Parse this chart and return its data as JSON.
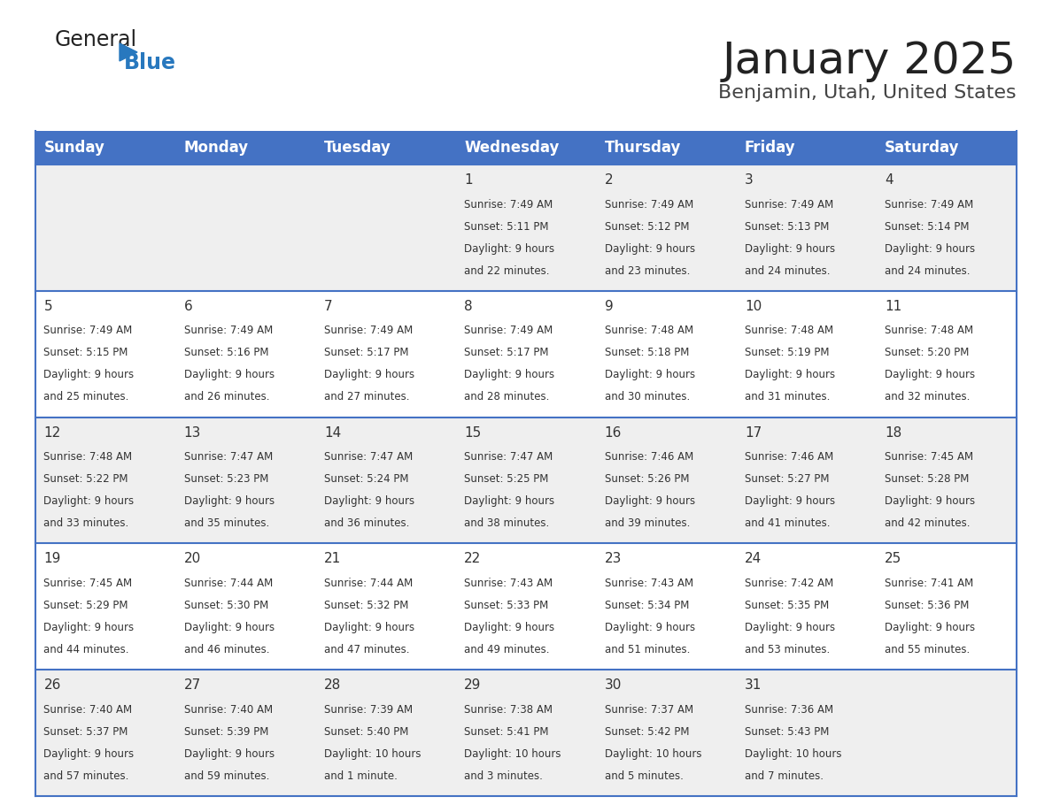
{
  "title": "January 2025",
  "subtitle": "Benjamin, Utah, United States",
  "header_color": "#4472C4",
  "header_text_color": "#FFFFFF",
  "weekdays": [
    "Sunday",
    "Monday",
    "Tuesday",
    "Wednesday",
    "Thursday",
    "Friday",
    "Saturday"
  ],
  "days": [
    {
      "day": 1,
      "col": 3,
      "row": 0,
      "sunrise": "7:49 AM",
      "sunset": "5:11 PM",
      "daylight_hours": 9,
      "daylight_minutes": 22
    },
    {
      "day": 2,
      "col": 4,
      "row": 0,
      "sunrise": "7:49 AM",
      "sunset": "5:12 PM",
      "daylight_hours": 9,
      "daylight_minutes": 23
    },
    {
      "day": 3,
      "col": 5,
      "row": 0,
      "sunrise": "7:49 AM",
      "sunset": "5:13 PM",
      "daylight_hours": 9,
      "daylight_minutes": 24
    },
    {
      "day": 4,
      "col": 6,
      "row": 0,
      "sunrise": "7:49 AM",
      "sunset": "5:14 PM",
      "daylight_hours": 9,
      "daylight_minutes": 24
    },
    {
      "day": 5,
      "col": 0,
      "row": 1,
      "sunrise": "7:49 AM",
      "sunset": "5:15 PM",
      "daylight_hours": 9,
      "daylight_minutes": 25
    },
    {
      "day": 6,
      "col": 1,
      "row": 1,
      "sunrise": "7:49 AM",
      "sunset": "5:16 PM",
      "daylight_hours": 9,
      "daylight_minutes": 26
    },
    {
      "day": 7,
      "col": 2,
      "row": 1,
      "sunrise": "7:49 AM",
      "sunset": "5:17 PM",
      "daylight_hours": 9,
      "daylight_minutes": 27
    },
    {
      "day": 8,
      "col": 3,
      "row": 1,
      "sunrise": "7:49 AM",
      "sunset": "5:17 PM",
      "daylight_hours": 9,
      "daylight_minutes": 28
    },
    {
      "day": 9,
      "col": 4,
      "row": 1,
      "sunrise": "7:48 AM",
      "sunset": "5:18 PM",
      "daylight_hours": 9,
      "daylight_minutes": 30
    },
    {
      "day": 10,
      "col": 5,
      "row": 1,
      "sunrise": "7:48 AM",
      "sunset": "5:19 PM",
      "daylight_hours": 9,
      "daylight_minutes": 31
    },
    {
      "day": 11,
      "col": 6,
      "row": 1,
      "sunrise": "7:48 AM",
      "sunset": "5:20 PM",
      "daylight_hours": 9,
      "daylight_minutes": 32
    },
    {
      "day": 12,
      "col": 0,
      "row": 2,
      "sunrise": "7:48 AM",
      "sunset": "5:22 PM",
      "daylight_hours": 9,
      "daylight_minutes": 33
    },
    {
      "day": 13,
      "col": 1,
      "row": 2,
      "sunrise": "7:47 AM",
      "sunset": "5:23 PM",
      "daylight_hours": 9,
      "daylight_minutes": 35
    },
    {
      "day": 14,
      "col": 2,
      "row": 2,
      "sunrise": "7:47 AM",
      "sunset": "5:24 PM",
      "daylight_hours": 9,
      "daylight_minutes": 36
    },
    {
      "day": 15,
      "col": 3,
      "row": 2,
      "sunrise": "7:47 AM",
      "sunset": "5:25 PM",
      "daylight_hours": 9,
      "daylight_minutes": 38
    },
    {
      "day": 16,
      "col": 4,
      "row": 2,
      "sunrise": "7:46 AM",
      "sunset": "5:26 PM",
      "daylight_hours": 9,
      "daylight_minutes": 39
    },
    {
      "day": 17,
      "col": 5,
      "row": 2,
      "sunrise": "7:46 AM",
      "sunset": "5:27 PM",
      "daylight_hours": 9,
      "daylight_minutes": 41
    },
    {
      "day": 18,
      "col": 6,
      "row": 2,
      "sunrise": "7:45 AM",
      "sunset": "5:28 PM",
      "daylight_hours": 9,
      "daylight_minutes": 42
    },
    {
      "day": 19,
      "col": 0,
      "row": 3,
      "sunrise": "7:45 AM",
      "sunset": "5:29 PM",
      "daylight_hours": 9,
      "daylight_minutes": 44
    },
    {
      "day": 20,
      "col": 1,
      "row": 3,
      "sunrise": "7:44 AM",
      "sunset": "5:30 PM",
      "daylight_hours": 9,
      "daylight_minutes": 46
    },
    {
      "day": 21,
      "col": 2,
      "row": 3,
      "sunrise": "7:44 AM",
      "sunset": "5:32 PM",
      "daylight_hours": 9,
      "daylight_minutes": 47
    },
    {
      "day": 22,
      "col": 3,
      "row": 3,
      "sunrise": "7:43 AM",
      "sunset": "5:33 PM",
      "daylight_hours": 9,
      "daylight_minutes": 49
    },
    {
      "day": 23,
      "col": 4,
      "row": 3,
      "sunrise": "7:43 AM",
      "sunset": "5:34 PM",
      "daylight_hours": 9,
      "daylight_minutes": 51
    },
    {
      "day": 24,
      "col": 5,
      "row": 3,
      "sunrise": "7:42 AM",
      "sunset": "5:35 PM",
      "daylight_hours": 9,
      "daylight_minutes": 53
    },
    {
      "day": 25,
      "col": 6,
      "row": 3,
      "sunrise": "7:41 AM",
      "sunset": "5:36 PM",
      "daylight_hours": 9,
      "daylight_minutes": 55
    },
    {
      "day": 26,
      "col": 0,
      "row": 4,
      "sunrise": "7:40 AM",
      "sunset": "5:37 PM",
      "daylight_hours": 9,
      "daylight_minutes": 57
    },
    {
      "day": 27,
      "col": 1,
      "row": 4,
      "sunrise": "7:40 AM",
      "sunset": "5:39 PM",
      "daylight_hours": 9,
      "daylight_minutes": 59
    },
    {
      "day": 28,
      "col": 2,
      "row": 4,
      "sunrise": "7:39 AM",
      "sunset": "5:40 PM",
      "daylight_hours": 10,
      "daylight_minutes": 1
    },
    {
      "day": 29,
      "col": 3,
      "row": 4,
      "sunrise": "7:38 AM",
      "sunset": "5:41 PM",
      "daylight_hours": 10,
      "daylight_minutes": 3
    },
    {
      "day": 30,
      "col": 4,
      "row": 4,
      "sunrise": "7:37 AM",
      "sunset": "5:42 PM",
      "daylight_hours": 10,
      "daylight_minutes": 5
    },
    {
      "day": 31,
      "col": 5,
      "row": 4,
      "sunrise": "7:36 AM",
      "sunset": "5:43 PM",
      "daylight_hours": 10,
      "daylight_minutes": 7
    }
  ],
  "num_rows": 5,
  "cell_bg_even": "#EFEFEF",
  "cell_bg_odd": "#FFFFFF",
  "line_color": "#4472C4",
  "text_color": "#333333",
  "title_color": "#222222",
  "subtitle_color": "#444444"
}
